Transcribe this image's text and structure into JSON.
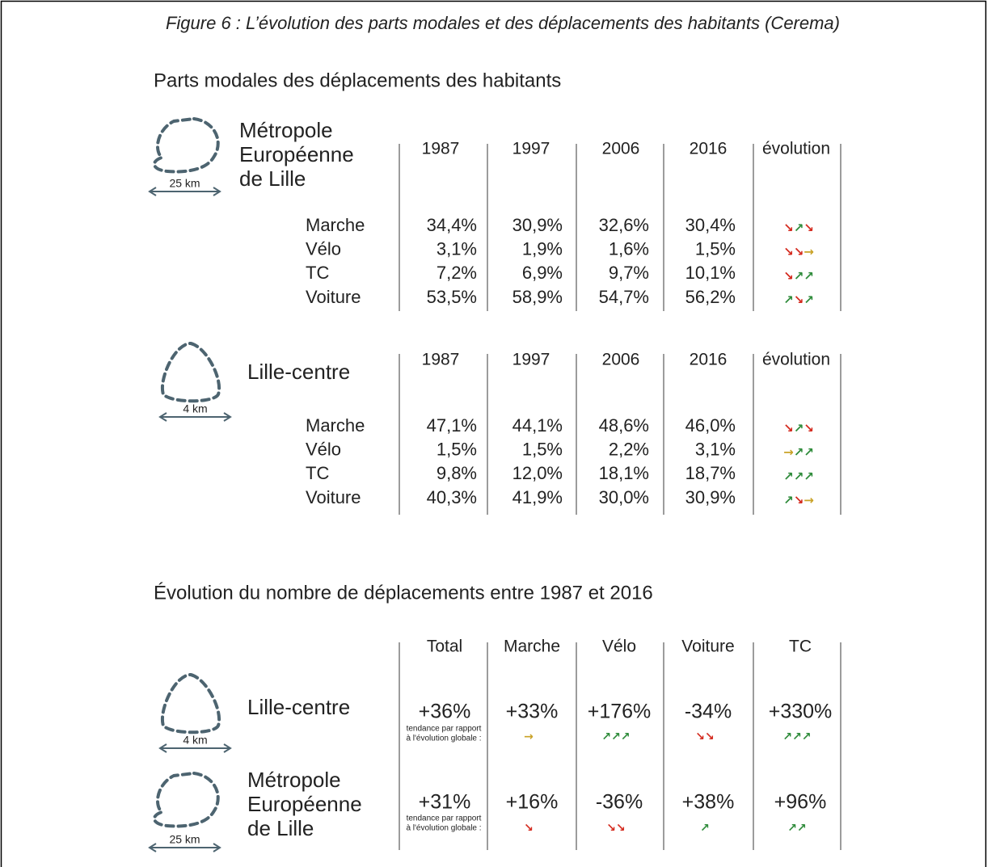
{
  "title": "Figure 6 : L’évolution des parts modales et des déplacements des habitants (Cerema)",
  "arrow_colors": {
    "↘": "#d42a1e",
    "↗": "#2e8b3a",
    "→": "#c9a227"
  },
  "modal_shares": {
    "heading": "Parts modales des déplacements des habitants",
    "tables": [
      {
        "region": [
          "Métropole",
          "Européenne",
          "de Lille"
        ],
        "scale": "25 km",
        "columns": [
          "1987",
          "1997",
          "2006",
          "2016",
          "évolution"
        ],
        "rows": [
          {
            "mode": "Marche",
            "values": [
              "34,4%",
              "30,9%",
              "32,6%",
              "30,4%"
            ],
            "evolution": "↘↗↘"
          },
          {
            "mode": "Vélo",
            "values": [
              "3,1%",
              "1,9%",
              "1,6%",
              "1,5%"
            ],
            "evolution": "↘↘→"
          },
          {
            "mode": "TC",
            "values": [
              "7,2%",
              "6,9%",
              "9,7%",
              "10,1%"
            ],
            "evolution": "↘↗↗"
          },
          {
            "mode": "Voiture",
            "values": [
              "53,5%",
              "58,9%",
              "54,7%",
              "56,2%"
            ],
            "evolution": "↗↘↗"
          }
        ]
      },
      {
        "region": [
          "Lille-centre"
        ],
        "scale": "4 km",
        "columns": [
          "1987",
          "1997",
          "2006",
          "2016",
          "évolution"
        ],
        "rows": [
          {
            "mode": "Marche",
            "values": [
              "47,1%",
              "44,1%",
              "48,6%",
              "46,0%"
            ],
            "evolution": "↘↗↘"
          },
          {
            "mode": "Vélo",
            "values": [
              "1,5%",
              "1,5%",
              "2,2%",
              "3,1%"
            ],
            "evolution": "→↗↗"
          },
          {
            "mode": "TC",
            "values": [
              "9,8%",
              "12,0%",
              "18,1%",
              "18,7%"
            ],
            "evolution": "↗↗↗"
          },
          {
            "mode": "Voiture",
            "values": [
              "40,3%",
              "41,9%",
              "30,0%",
              "30,9%"
            ],
            "evolution": "↗↘→"
          }
        ]
      }
    ]
  },
  "trips": {
    "heading": "Évolution du nombre de déplacements entre 1987 et 2016",
    "columns": [
      "Total",
      "Marche",
      "Vélo",
      "Voiture",
      "TC"
    ],
    "rows": [
      {
        "region": [
          "Lille-centre"
        ],
        "scale": "4 km",
        "note": [
          "tendance par rapport",
          "à l'évolution globale :"
        ],
        "cells": [
          {
            "value": "+36%",
            "color": "#555555"
          },
          {
            "value": "+33%",
            "color": "#555555",
            "trend": "→"
          },
          {
            "value": "+176%",
            "color": "#3a8f3a",
            "trend": "↗↗↗"
          },
          {
            "value": "-34%",
            "color": "#d42a1e",
            "trend": "↘↘"
          },
          {
            "value": "+330%",
            "color": "#3a8f3a",
            "trend": "↗↗↗"
          }
        ]
      },
      {
        "region": [
          "Métropole",
          "Européenne",
          "de Lille"
        ],
        "scale": "25 km",
        "note": [
          "tendance par rapport",
          "à l'évolution globale :"
        ],
        "cells": [
          {
            "value": "+31%",
            "color": "#555555"
          },
          {
            "value": "+16%",
            "color": "#555555",
            "trend": "↘"
          },
          {
            "value": "-36%",
            "color": "#d42a1e",
            "trend": "↘↘"
          },
          {
            "value": "+38%",
            "color": "#3a8f3a",
            "trend": "↗"
          },
          {
            "value": "+96%",
            "color": "#3a8f3a",
            "trend": "↗↗"
          }
        ]
      }
    ]
  }
}
